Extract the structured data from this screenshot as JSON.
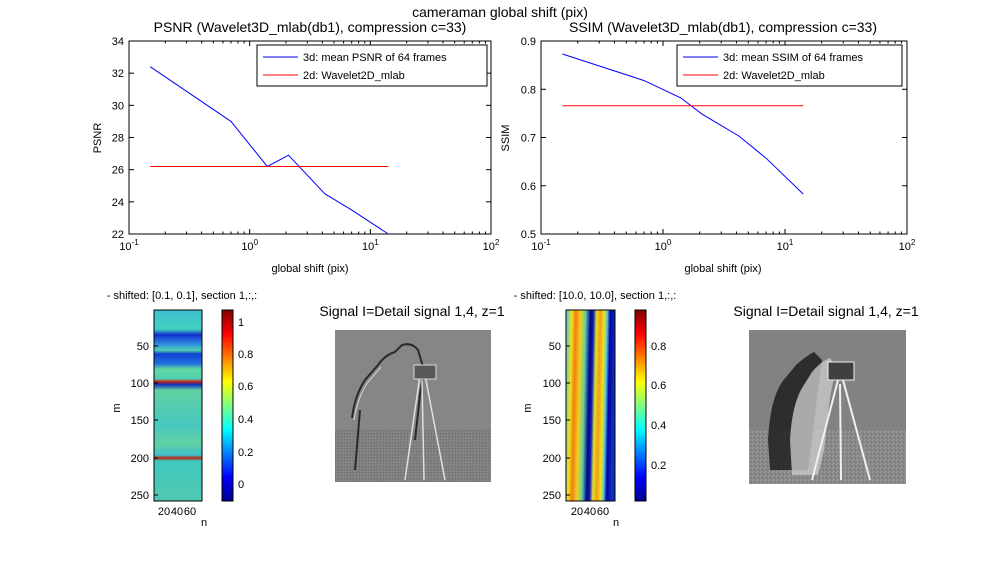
{
  "figure": {
    "suptitle": "cameraman global shift (pix)"
  },
  "chart_data": [
    {
      "type": "line",
      "title": "PSNR (Wavelet3D_mlab(db1), compression c=33)",
      "xlabel": "global shift (pix)",
      "ylabel": "PSNR",
      "xscale": "log",
      "xlim": [
        0.1,
        100
      ],
      "ylim": [
        22,
        34
      ],
      "xticks": [
        0.1,
        1,
        10,
        100
      ],
      "xtick_labels": [
        "10-1",
        "100",
        "101",
        "102"
      ],
      "yticks": [
        22,
        24,
        26,
        28,
        30,
        32,
        34
      ],
      "ytick_labels": [
        "22",
        "24",
        "26",
        "28",
        "30",
        "32",
        "34"
      ],
      "legend_position": "top-right",
      "series": [
        {
          "name": "3d: mean PSNR of 64 frames",
          "color": "#0000ff",
          "x": [
            0.15,
            0.7,
            1.4,
            2.1,
            4.2,
            7.0,
            14.1
          ],
          "y": [
            32.4,
            29.0,
            26.2,
            26.9,
            24.5,
            23.5,
            22.0
          ]
        },
        {
          "name": "2d: Wavelet2D_mlab",
          "color": "#ff0000",
          "x": [
            0.15,
            14.1
          ],
          "y": [
            26.2,
            26.2
          ]
        }
      ]
    },
    {
      "type": "line",
      "title": "SSIM (Wavelet3D_mlab(db1), compression c=33)",
      "xlabel": "global shift (pix)",
      "ylabel": "SSIM",
      "xscale": "log",
      "xlim": [
        0.1,
        100
      ],
      "ylim": [
        0.5,
        0.9
      ],
      "xticks": [
        0.1,
        1,
        10,
        100
      ],
      "xtick_labels": [
        "10-1",
        "100",
        "101",
        "102"
      ],
      "yticks": [
        0.5,
        0.6,
        0.7,
        0.8,
        0.9
      ],
      "ytick_labels": [
        "0.5",
        "0.6",
        "0.7",
        "0.8",
        "0.9"
      ],
      "legend_position": "top-right",
      "series": [
        {
          "name": "3d: mean SSIM of 64 frames",
          "color": "#0000ff",
          "x": [
            0.15,
            0.7,
            1.4,
            2.1,
            4.2,
            7.0,
            14.1
          ],
          "y": [
            0.873,
            0.818,
            0.782,
            0.748,
            0.703,
            0.657,
            0.583
          ]
        },
        {
          "name": "2d: Wavelet2D_mlab",
          "color": "#ff0000",
          "x": [
            0.15,
            14.1
          ],
          "y": [
            0.766,
            0.766
          ]
        }
      ]
    },
    {
      "type": "heatmap",
      "title": "- shifted: [0.1, 0.1], section 1,:,:",
      "xlabel": "n",
      "ylabel": "m",
      "yticks": [
        "50",
        "100",
        "150",
        "200",
        "250"
      ],
      "xticks": [
        "20",
        "40",
        "60"
      ],
      "colorbar_ticks": [
        "0",
        "0.2",
        "0.4",
        "0.6",
        "0.8",
        "1"
      ],
      "colorbar_range": [
        -0.1,
        1.05
      ],
      "colormap": "jet"
    },
    {
      "type": "heatmap",
      "title": "Signal I=Detail signal 1,4, z=1",
      "colormap": "gray"
    },
    {
      "type": "heatmap",
      "title": "- shifted: [10.0, 10.0], section 1,:,:",
      "xlabel": "n",
      "ylabel": "m",
      "yticks": [
        "50",
        "100",
        "150",
        "200",
        "250"
      ],
      "xticks": [
        "20",
        "40",
        "60"
      ],
      "colorbar_ticks": [
        "0.2",
        "0.4",
        "0.6",
        "0.8"
      ],
      "colorbar_range": [
        0.02,
        0.98
      ],
      "colormap": "jet"
    },
    {
      "type": "heatmap",
      "title": "Signal I=Detail signal 1,4, z=1",
      "colormap": "gray"
    }
  ]
}
